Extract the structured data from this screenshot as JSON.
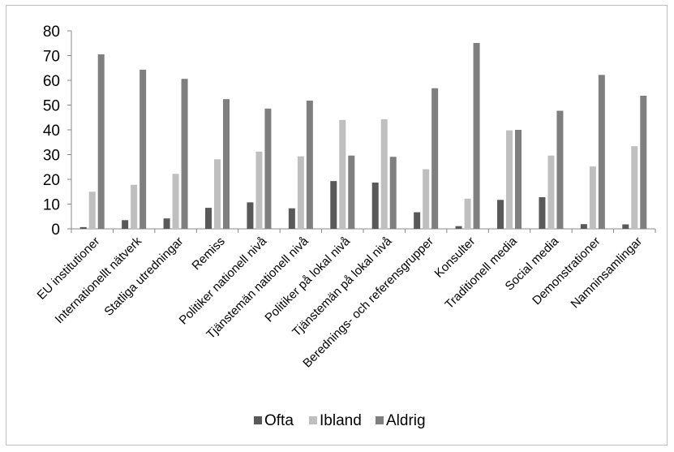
{
  "chart_data": {
    "type": "bar",
    "categories": [
      "EU institutioner",
      "Internationellt nätverk",
      "Statliga utredningar",
      "Remiss",
      "Politiker nationell nivå",
      "Tjänstemän nationell nivå",
      "Politiker på lokal nivå",
      "Tjänstemän på lokal nivå",
      "Berednings- och referensgrupper",
      "Konsulter",
      "Traditionell media",
      "Social media",
      "Demonstrationer",
      "Namninsamlingar"
    ],
    "series": [
      {
        "name": "Ofta",
        "color": "#595959",
        "values": [
          0.7,
          3.5,
          4.2,
          8.5,
          10.7,
          8.3,
          19.3,
          18.7,
          6.7,
          1.1,
          11.7,
          12.8,
          1.9,
          1.8
        ]
      },
      {
        "name": "Ibland",
        "color": "#bfbfbf",
        "values": [
          15,
          17.8,
          22.2,
          28.1,
          31.2,
          29.3,
          44,
          44.3,
          24.1,
          12.2,
          39.8,
          29.6,
          25.2,
          33.4
        ]
      },
      {
        "name": "Aldrig",
        "color": "#7f7f7f",
        "values": [
          70.5,
          64.3,
          60.6,
          52.4,
          48.6,
          51.8,
          29.6,
          29.1,
          56.8,
          75.1,
          40,
          47.7,
          62.2,
          53.8
        ]
      }
    ],
    "ylim": [
      0,
      80
    ],
    "yticks": [
      0,
      10,
      20,
      30,
      40,
      50,
      60,
      70,
      80
    ],
    "grid": false,
    "legend_position": "bottom"
  }
}
